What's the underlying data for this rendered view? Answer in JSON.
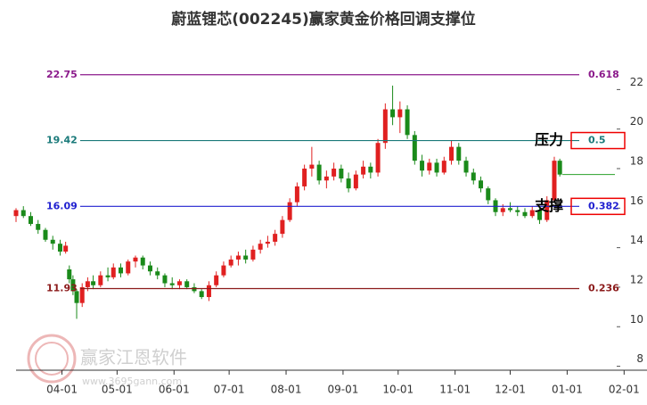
{
  "chart_data": {
    "type": "candlestick",
    "title": "蔚蓝锂芯(002245)赢家黄金价格回调支撑位",
    "watermark": "赢家江恩软件",
    "watermark_url": "www.3695gann.com",
    "xlim": [
      67,
      393
    ],
    "ylim": [
      7.8,
      24.5
    ],
    "xticks": [
      {
        "value": 92,
        "label": "04-01"
      },
      {
        "value": 122,
        "label": "05-01"
      },
      {
        "value": 153,
        "label": "06-01"
      },
      {
        "value": 183,
        "label": "07-01"
      },
      {
        "value": 214,
        "label": "08-01"
      },
      {
        "value": 245,
        "label": "09-01"
      },
      {
        "value": 275,
        "label": "10-01"
      },
      {
        "value": 306,
        "label": "11-01"
      },
      {
        "value": 336,
        "label": "12-01"
      },
      {
        "value": 367,
        "label": "01-01"
      },
      {
        "value": 398,
        "label": "02-01"
      }
    ],
    "yticks": [
      8,
      10,
      12,
      14,
      16,
      18,
      20,
      22
    ],
    "up_color": "#e02020",
    "down_color": "#1a8a1a",
    "last_color": "#2aa02a",
    "levels": [
      {
        "price": 22.75,
        "ratio": 0.618,
        "color": "#8b1a8b"
      },
      {
        "price": 19.42,
        "ratio": 0.5,
        "color": "#1a7a7a",
        "note": "压力"
      },
      {
        "price": 16.09,
        "ratio": 0.382,
        "color": "#2020d0",
        "note": "支撑"
      },
      {
        "price": 11.93,
        "ratio": 0.236,
        "color": "#8b1a1a"
      }
    ],
    "x": [
      67,
      71,
      75,
      79,
      83,
      87,
      91,
      94,
      96,
      98,
      100,
      103,
      106,
      109,
      113,
      117,
      120,
      124,
      128,
      132,
      136,
      140,
      144,
      148,
      152,
      156,
      160,
      164,
      168,
      172,
      176,
      180,
      184,
      188,
      192,
      196,
      200,
      204,
      208,
      212,
      216,
      220,
      224,
      228,
      232,
      236,
      240,
      244,
      248,
      252,
      256,
      260,
      264,
      268,
      272,
      276,
      280,
      284,
      288,
      292,
      296,
      300,
      304,
      308,
      312,
      316,
      320,
      324,
      328,
      332,
      336,
      340,
      344,
      348,
      352,
      356,
      360,
      363
    ],
    "open": [
      15.6,
      15.9,
      15.6,
      15.2,
      14.9,
      14.4,
      14.2,
      13.8,
      12.9,
      12.4,
      11.8,
      11.2,
      12.0,
      12.3,
      12.1,
      12.6,
      12.5,
      13.0,
      12.7,
      13.3,
      13.5,
      13.1,
      12.8,
      12.6,
      12.2,
      12.1,
      12.3,
      12.0,
      11.8,
      11.5,
      12.1,
      12.6,
      13.1,
      13.4,
      13.6,
      13.4,
      13.9,
      14.2,
      14.3,
      14.7,
      15.4,
      16.3,
      17.1,
      18.0,
      18.2,
      17.4,
      17.6,
      18.0,
      17.5,
      17.0,
      17.7,
      18.1,
      17.8,
      19.3,
      21.0,
      20.6,
      21.0,
      19.7,
      18.4,
      17.9,
      18.3,
      17.8,
      18.4,
      19.1,
      18.4,
      17.8,
      17.4,
      17.0,
      16.4,
      15.8,
      16.0,
      15.9,
      15.8,
      15.6,
      15.9,
      15.4,
      16.4,
      18.4
    ],
    "high": [
      16.0,
      16.1,
      15.8,
      15.4,
      15.0,
      14.6,
      14.4,
      14.3,
      13.1,
      12.6,
      11.9,
      12.2,
      12.5,
      12.6,
      12.8,
      13.0,
      13.2,
      13.2,
      13.4,
      13.6,
      13.6,
      13.3,
      13.0,
      12.7,
      12.5,
      12.4,
      12.4,
      12.2,
      11.9,
      12.3,
      12.8,
      13.3,
      13.6,
      13.8,
      13.9,
      14.1,
      14.4,
      14.6,
      14.9,
      15.6,
      16.5,
      17.3,
      18.2,
      19.1,
      18.4,
      17.9,
      18.3,
      18.2,
      17.8,
      17.9,
      18.4,
      18.3,
      19.5,
      21.3,
      22.2,
      21.4,
      21.2,
      19.9,
      18.7,
      18.5,
      18.5,
      18.6,
      19.4,
      19.3,
      18.6,
      18.0,
      17.6,
      17.1,
      16.5,
      16.2,
      16.3,
      16.1,
      16.0,
      16.1,
      16.0,
      16.6,
      18.6,
      18.5
    ],
    "low": [
      15.3,
      15.5,
      15.1,
      14.7,
      14.3,
      13.9,
      13.6,
      13.7,
      12.2,
      11.6,
      10.4,
      11.0,
      11.8,
      11.9,
      12.0,
      12.3,
      12.4,
      12.5,
      12.6,
      13.0,
      12.9,
      12.6,
      12.4,
      12.0,
      11.9,
      11.9,
      11.9,
      11.7,
      11.4,
      11.3,
      12.0,
      12.5,
      13.0,
      13.1,
      13.2,
      13.3,
      13.7,
      14.0,
      14.1,
      14.5,
      15.3,
      16.1,
      16.9,
      17.6,
      17.2,
      17.0,
      17.4,
      17.3,
      16.8,
      16.9,
      17.5,
      17.5,
      17.6,
      19.0,
      20.2,
      19.8,
      19.5,
      18.2,
      17.6,
      17.7,
      17.6,
      17.7,
      18.2,
      18.2,
      17.6,
      17.2,
      16.8,
      16.2,
      15.6,
      15.6,
      15.8,
      15.6,
      15.5,
      15.5,
      15.2,
      15.3,
      16.3,
      17.6
    ],
    "close": [
      15.9,
      15.6,
      15.2,
      14.9,
      14.4,
      14.2,
      13.8,
      14.1,
      12.4,
      11.8,
      11.2,
      12.0,
      12.3,
      12.1,
      12.6,
      12.5,
      13.0,
      12.7,
      13.3,
      13.5,
      13.1,
      12.8,
      12.6,
      12.2,
      12.1,
      12.3,
      12.0,
      11.8,
      11.5,
      12.1,
      12.6,
      13.1,
      13.4,
      13.6,
      13.4,
      13.9,
      14.2,
      14.3,
      14.7,
      15.4,
      16.3,
      17.1,
      18.0,
      18.2,
      17.4,
      17.6,
      18.0,
      17.5,
      17.0,
      17.7,
      18.1,
      17.8,
      19.3,
      21.0,
      20.6,
      21.0,
      19.7,
      18.4,
      17.9,
      18.3,
      17.8,
      18.4,
      19.1,
      18.4,
      17.8,
      17.4,
      17.0,
      16.4,
      15.8,
      16.0,
      15.9,
      15.8,
      15.6,
      15.9,
      15.4,
      16.4,
      18.4,
      17.7
    ]
  }
}
